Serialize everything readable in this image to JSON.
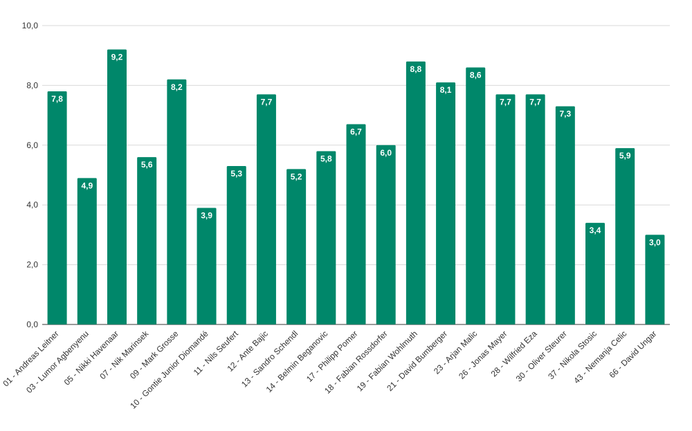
{
  "chart_data": {
    "type": "bar",
    "title": "",
    "xlabel": "",
    "ylabel": "",
    "ylim": [
      0,
      10
    ],
    "yticks": [
      "0,0",
      "2,0",
      "4,0",
      "6,0",
      "8,0",
      "10,0"
    ],
    "grid": true,
    "legend": "none",
    "bar_color": "#00876a",
    "categories": [
      "01 - Andreas Leitner",
      "03 - Lumor Agbenyenu",
      "05 - Nikki Havenaar",
      "07 - Nik Marinsek",
      "09 - Mark Grosse",
      "10 - Gontie Junior Diomandé",
      "11 - Nils Seufert",
      "12 - Ante Bajic",
      "13 - Sandro Schendl",
      "14 - Belmin Beganovic",
      "17 - Philipp Pomer",
      "18 - Fabian Rossdorfer",
      "19 - Fabian Wohlmuth",
      "21 - David Bumberger",
      "23 - Arjan Malic",
      "26 - Jonas Mayer",
      "28 - Wilfried Eza",
      "30 - Oliver Steurer",
      "37 - Nikola Stosic",
      "43 - Nemanja Celic",
      "66 - David Ungar"
    ],
    "values": [
      7.8,
      4.9,
      9.2,
      5.6,
      8.2,
      3.9,
      5.3,
      7.7,
      5.2,
      5.8,
      6.7,
      6.0,
      8.8,
      8.1,
      8.6,
      7.7,
      7.7,
      7.3,
      3.4,
      5.9,
      3.0
    ],
    "value_labels": [
      "7,8",
      "4,9",
      "9,2",
      "5,6",
      "8,2",
      "3,9",
      "5,3",
      "7,7",
      "5,2",
      "5,8",
      "6,7",
      "6,0",
      "8,8",
      "8,1",
      "8,6",
      "7,7",
      "7,7",
      "7,3",
      "3,4",
      "5,9",
      "3,0"
    ]
  }
}
